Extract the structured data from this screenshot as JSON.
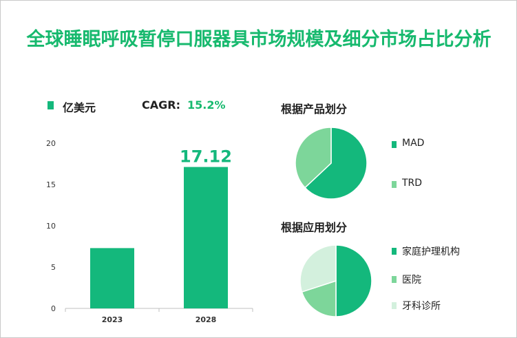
{
  "title": "全球睡眠呼吸暂停口服器具市场规模及细分市场占比分析",
  "unit_legend": "亿美元",
  "cagr_label": "CAGR:",
  "cagr_value": "15.2%",
  "colors": {
    "primary": "#14b87c",
    "light": "#7dd69a",
    "pale": "#d3f0dd",
    "title": "#17b96e"
  },
  "chart_data": [
    {
      "type": "bar",
      "categories": [
        "2023",
        "2028"
      ],
      "series": [
        {
          "name": "亿美元",
          "values": [
            7.3,
            17.12
          ]
        }
      ],
      "data_labels": [
        "",
        "17.12"
      ],
      "ylim": [
        0,
        20
      ],
      "yticks": [
        "0",
        "5",
        "10",
        "15",
        "20"
      ],
      "grid": false
    },
    {
      "type": "pie",
      "title": "根据产品划分",
      "labels": [
        "MAD",
        "TRD"
      ],
      "values": [
        63,
        37
      ]
    },
    {
      "type": "pie",
      "title": "根据应用划分",
      "labels": [
        "家庭护理机构",
        "医院",
        "牙科诊所"
      ],
      "values": [
        50,
        20,
        30
      ]
    }
  ]
}
